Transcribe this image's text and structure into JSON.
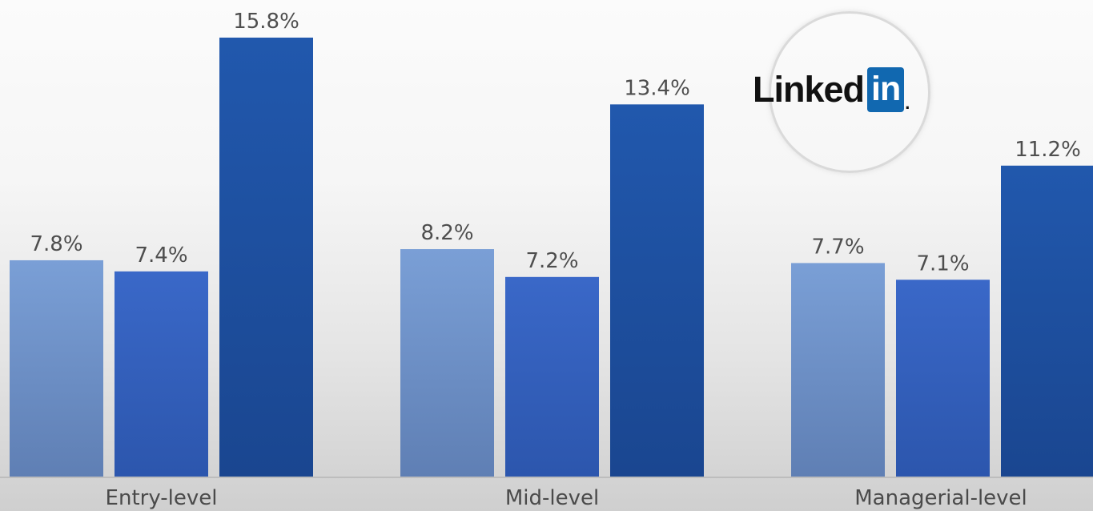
{
  "brand": {
    "logo_word": "Linked",
    "logo_box": "in",
    "logo_dot": "."
  },
  "chart_data": {
    "type": "bar",
    "categories": [
      "Entry-level",
      "Mid-level",
      "Managerial-level"
    ],
    "series": [
      {
        "values": [
          7.8,
          8.2,
          7.7
        ],
        "color": "#7095cf"
      },
      {
        "values": [
          7.4,
          7.2,
          7.1
        ],
        "color": "#3b68c6"
      },
      {
        "values": [
          15.8,
          13.4,
          11.2
        ],
        "color": "#1f54a6"
      }
    ],
    "value_labels": [
      [
        "7.8%",
        "8.2%",
        "7.7%"
      ],
      [
        "7.4%",
        "7.2%",
        "7.1%"
      ],
      [
        "15.8%",
        "13.4%",
        "11.2%"
      ]
    ],
    "ylim": [
      0,
      16.8
    ],
    "grid": false,
    "legend": "none"
  }
}
